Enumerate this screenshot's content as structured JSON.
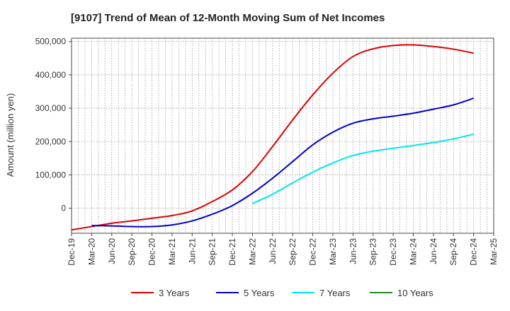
{
  "chart_data": {
    "type": "line",
    "title": "[9107]  Trend of Mean of 12-Month Moving Sum of Net Incomes",
    "xlabel": "",
    "ylabel": "Amount (million yen)",
    "ylim": [
      -75000,
      510000
    ],
    "yticks": [
      0,
      100000,
      200000,
      300000,
      400000,
      500000
    ],
    "ytick_labels": [
      "0",
      "100,000",
      "200,000",
      "300,000",
      "400,000",
      "500,000"
    ],
    "x_tick_labels": [
      "Dec-19",
      "Mar-20",
      "Jun-20",
      "Sep-20",
      "Dec-20",
      "Mar-21",
      "Jun-21",
      "Sep-21",
      "Dec-21",
      "Mar-22",
      "Jun-22",
      "Sep-22",
      "Dec-22",
      "Mar-23",
      "Jun-23",
      "Sep-23",
      "Dec-23",
      "Mar-24",
      "Jun-24",
      "Sep-24",
      "Dec-24",
      "Mar-25"
    ],
    "grid": true,
    "legend_position": "bottom",
    "series": [
      {
        "name": "3 Years",
        "color": "#dd0000",
        "x": [
          "Dec-19",
          "Mar-20",
          "Jun-20",
          "Sep-20",
          "Dec-20",
          "Mar-21",
          "Jun-21",
          "Sep-21",
          "Dec-21",
          "Mar-22",
          "Jun-22",
          "Sep-22",
          "Dec-22",
          "Mar-23",
          "Jun-23",
          "Sep-23",
          "Dec-23",
          "Mar-24",
          "Jun-24",
          "Sep-24",
          "Dec-24"
        ],
        "values": [
          -65000,
          -55000,
          -45000,
          -38000,
          -30000,
          -22000,
          -8000,
          20000,
          55000,
          110000,
          185000,
          265000,
          340000,
          405000,
          455000,
          478000,
          488000,
          490000,
          485000,
          477000,
          465000
        ]
      },
      {
        "name": "5 Years",
        "color": "#0000cc",
        "x": [
          "Mar-20",
          "Jun-20",
          "Sep-20",
          "Dec-20",
          "Mar-21",
          "Jun-21",
          "Sep-21",
          "Dec-21",
          "Mar-22",
          "Jun-22",
          "Sep-22",
          "Dec-22",
          "Mar-23",
          "Jun-23",
          "Sep-23",
          "Dec-23",
          "Mar-24",
          "Jun-24",
          "Sep-24",
          "Dec-24"
        ],
        "values": [
          -52000,
          -53000,
          -55000,
          -55000,
          -50000,
          -38000,
          -18000,
          8000,
          45000,
          90000,
          140000,
          190000,
          228000,
          255000,
          268000,
          276000,
          285000,
          297000,
          310000,
          330000
        ]
      },
      {
        "name": "7 Years",
        "color": "#00e5ee",
        "x": [
          "Mar-22",
          "Jun-22",
          "Sep-22",
          "Dec-22",
          "Mar-23",
          "Jun-23",
          "Sep-23",
          "Dec-23",
          "Mar-24",
          "Jun-24",
          "Sep-24",
          "Dec-24"
        ],
        "values": [
          14000,
          42000,
          76000,
          108000,
          136000,
          158000,
          171000,
          180000,
          188000,
          197000,
          208000,
          222000
        ]
      },
      {
        "name": "10 Years",
        "color": "#228b22",
        "x": [],
        "values": []
      }
    ]
  }
}
